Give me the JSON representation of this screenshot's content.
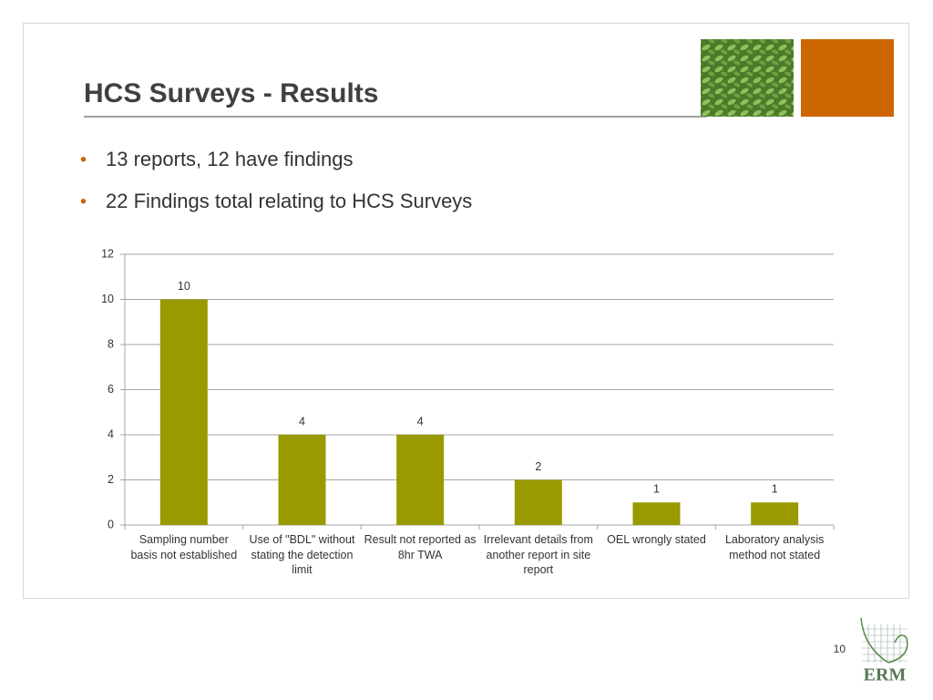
{
  "header": {
    "title": "HCS Surveys - Results"
  },
  "bullets": [
    "13 reports, 12 have findings",
    "22 Findings total relating to HCS Surveys"
  ],
  "chart_data": {
    "type": "bar",
    "categories": [
      "Sampling number basis not established",
      "Use of \"BDL\" without stating the detection limit",
      "Result not reported as 8hr TWA",
      "Irrelevant details from another report in site report",
      "OEL wrongly stated",
      "Laboratory analysis method not stated"
    ],
    "values": [
      10,
      4,
      4,
      2,
      1,
      1
    ],
    "color": "#999900",
    "ylim": [
      0,
      12
    ],
    "yticks": [
      0,
      2,
      4,
      6,
      8,
      10,
      12
    ],
    "grid": true
  },
  "footer": {
    "page_number": "10",
    "logo": "ERM"
  }
}
